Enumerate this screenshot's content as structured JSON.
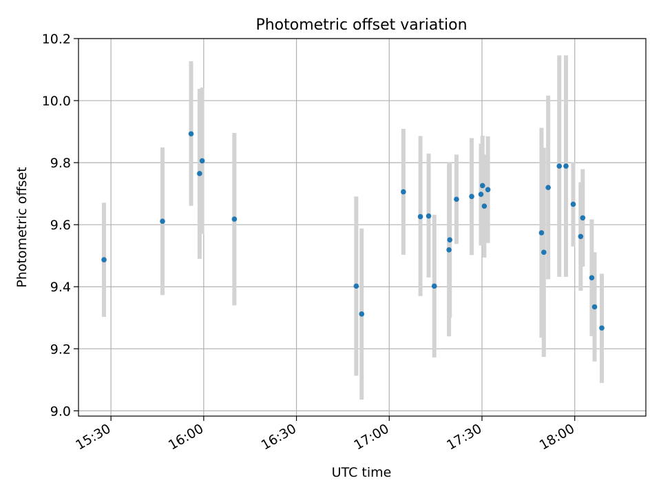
{
  "chart_data": {
    "type": "scatter",
    "title": "Photometric offset variation",
    "xlabel": "UTC time",
    "ylabel": "Photometric offset",
    "xlim": [
      "15:19:30",
      "18:23:00"
    ],
    "ylim": [
      8.983,
      10.2
    ],
    "x_ticks": [
      "15:30",
      "16:00",
      "16:30",
      "17:00",
      "17:30",
      "18:00"
    ],
    "y_ticks": [
      "9.0",
      "9.2",
      "9.4",
      "9.6",
      "9.8",
      "10.0",
      "10.2"
    ],
    "grid": true,
    "legend": "none",
    "colors": {
      "marker": "#1f77b4",
      "errorbar": "#d3d3d3",
      "grid": "#b0b0b0"
    },
    "series": [
      {
        "points": [
          {
            "x": "15:27:45",
            "y": 9.487,
            "low": 9.303,
            "high": 9.671
          },
          {
            "x": "15:46:40",
            "y": 9.611,
            "low": 9.373,
            "high": 9.849
          },
          {
            "x": "15:55:55",
            "y": 9.893,
            "low": 9.661,
            "high": 10.127
          },
          {
            "x": "15:58:40",
            "y": 9.765,
            "low": 9.49,
            "high": 10.038
          },
          {
            "x": "15:59:30",
            "y": 9.806,
            "low": 9.57,
            "high": 10.042
          },
          {
            "x": "16:09:55",
            "y": 9.618,
            "low": 9.34,
            "high": 9.896
          },
          {
            "x": "16:49:20",
            "y": 9.402,
            "low": 9.113,
            "high": 9.691
          },
          {
            "x": "16:51:05",
            "y": 9.312,
            "low": 9.036,
            "high": 9.588
          },
          {
            "x": "17:04:35",
            "y": 9.706,
            "low": 9.503,
            "high": 9.909
          },
          {
            "x": "17:10:05",
            "y": 9.626,
            "low": 9.37,
            "high": 9.886
          },
          {
            "x": "17:12:45",
            "y": 9.628,
            "low": 9.43,
            "high": 9.829
          },
          {
            "x": "17:14:35",
            "y": 9.402,
            "low": 9.172,
            "high": 9.632
          },
          {
            "x": "17:19:20",
            "y": 9.519,
            "low": 9.24,
            "high": 9.8
          },
          {
            "x": "17:19:35",
            "y": 9.551,
            "low": 9.3,
            "high": 9.8
          },
          {
            "x": "17:21:45",
            "y": 9.682,
            "low": 9.538,
            "high": 9.826
          },
          {
            "x": "17:26:40",
            "y": 9.691,
            "low": 9.502,
            "high": 9.879
          },
          {
            "x": "17:29:40",
            "y": 9.698,
            "low": 9.533,
            "high": 9.861
          },
          {
            "x": "17:30:10",
            "y": 9.726,
            "low": 9.565,
            "high": 9.887
          },
          {
            "x": "17:30:45",
            "y": 9.66,
            "low": 9.494,
            "high": 9.826
          },
          {
            "x": "17:31:55",
            "y": 9.713,
            "low": 9.541,
            "high": 9.885
          },
          {
            "x": "17:49:15",
            "y": 9.574,
            "low": 9.236,
            "high": 9.912
          },
          {
            "x": "17:50:00",
            "y": 9.511,
            "low": 9.174,
            "high": 9.848
          },
          {
            "x": "17:51:25",
            "y": 9.72,
            "low": 9.424,
            "high": 10.016
          },
          {
            "x": "17:55:00",
            "y": 9.789,
            "low": 9.432,
            "high": 10.146
          },
          {
            "x": "17:57:10",
            "y": 9.789,
            "low": 9.432,
            "high": 10.146
          },
          {
            "x": "17:59:30",
            "y": 9.666,
            "low": 9.53,
            "high": 9.802
          },
          {
            "x": "18:01:55",
            "y": 9.562,
            "low": 9.387,
            "high": 9.737
          },
          {
            "x": "18:02:35",
            "y": 9.622,
            "low": 9.465,
            "high": 9.779
          },
          {
            "x": "18:05:30",
            "y": 9.429,
            "low": 9.241,
            "high": 9.617
          },
          {
            "x": "18:06:25",
            "y": 9.335,
            "low": 9.159,
            "high": 9.511
          },
          {
            "x": "18:08:45",
            "y": 9.267,
            "low": 9.09,
            "high": 9.442
          }
        ]
      }
    ]
  }
}
